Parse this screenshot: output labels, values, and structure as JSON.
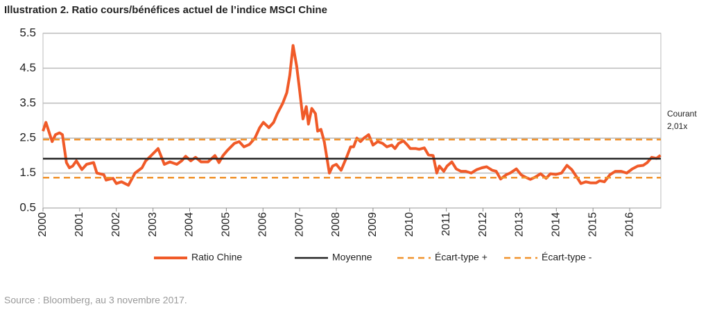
{
  "chart_data": {
    "type": "line",
    "title": "Illustration 2. Ratio cours/bénéfices actuel de l’indice MSCI Chine",
    "source": "Source : Bloomberg, au 3 novembre 2017.",
    "annotation": [
      "Courant",
      "2,01x"
    ],
    "xlim": [
      2000,
      2016.85
    ],
    "xticks": [
      2000,
      2001,
      2002,
      2003,
      2004,
      2005,
      2006,
      2007,
      2008,
      2009,
      2010,
      2011,
      2012,
      2013,
      2014,
      2015,
      2016
    ],
    "ylim": [
      0.5,
      5.5
    ],
    "yticks": [
      0.5,
      1.5,
      2.5,
      3.5,
      4.5,
      5.5
    ],
    "grid": true,
    "series": [
      {
        "name": "Ratio Chine",
        "color": "#f05a28",
        "width": 4,
        "dashed": false,
        "x": [
          2000.0,
          2000.08,
          2000.25,
          2000.34,
          2000.45,
          2000.53,
          2000.64,
          2000.72,
          2000.81,
          2000.91,
          2001.06,
          2001.19,
          2001.38,
          2001.47,
          2001.66,
          2001.72,
          2001.91,
          2002.0,
          2002.14,
          2002.33,
          2002.51,
          2002.7,
          2002.8,
          2002.95,
          2003.14,
          2003.31,
          2003.46,
          2003.65,
          2003.78,
          2003.89,
          2004.03,
          2004.16,
          2004.31,
          2004.5,
          2004.69,
          2004.8,
          2004.91,
          2005.03,
          2005.22,
          2005.35,
          2005.48,
          2005.63,
          2005.78,
          2005.91,
          2006.01,
          2006.16,
          2006.29,
          2006.39,
          2006.54,
          2006.65,
          2006.73,
          2006.82,
          2006.92,
          2006.99,
          2007.09,
          2007.18,
          2007.24,
          2007.33,
          2007.43,
          2007.49,
          2007.58,
          2007.67,
          2007.81,
          2007.9,
          2008.0,
          2008.13,
          2008.28,
          2008.39,
          2008.47,
          2008.56,
          2008.66,
          2008.75,
          2008.88,
          2009.0,
          2009.13,
          2009.26,
          2009.38,
          2009.51,
          2009.6,
          2009.7,
          2009.83,
          2009.94,
          2010.02,
          2010.17,
          2010.26,
          2010.4,
          2010.51,
          2010.64,
          2010.74,
          2010.81,
          2010.93,
          2011.02,
          2011.15,
          2011.27,
          2011.4,
          2011.53,
          2011.68,
          2011.83,
          2011.97,
          2012.1,
          2012.25,
          2012.36,
          2012.48,
          2012.63,
          2012.74,
          2012.91,
          2013.04,
          2013.16,
          2013.29,
          2013.42,
          2013.57,
          2013.72,
          2013.84,
          2013.99,
          2014.14,
          2014.29,
          2014.42,
          2014.56,
          2014.67,
          2014.8,
          2014.93,
          2015.09,
          2015.18,
          2015.31,
          2015.46,
          2015.61,
          2015.77,
          2015.92,
          2016.07,
          2016.22,
          2016.37,
          2016.48,
          2016.6,
          2016.73,
          2016.84
        ],
        "values": [
          2.7,
          2.95,
          2.4,
          2.6,
          2.65,
          2.6,
          1.8,
          1.65,
          1.7,
          1.85,
          1.6,
          1.75,
          1.8,
          1.5,
          1.45,
          1.3,
          1.35,
          1.2,
          1.25,
          1.15,
          1.5,
          1.65,
          1.85,
          2.0,
          2.2,
          1.75,
          1.82,
          1.75,
          1.85,
          1.98,
          1.85,
          1.95,
          1.82,
          1.82,
          2.0,
          1.8,
          2.0,
          2.15,
          2.35,
          2.4,
          2.25,
          2.32,
          2.5,
          2.8,
          2.95,
          2.8,
          2.95,
          3.2,
          3.5,
          3.8,
          4.3,
          5.15,
          4.55,
          3.95,
          3.05,
          3.4,
          2.9,
          3.35,
          3.2,
          2.7,
          2.75,
          2.4,
          1.5,
          1.7,
          1.75,
          1.58,
          1.95,
          2.25,
          2.25,
          2.5,
          2.4,
          2.5,
          2.6,
          2.3,
          2.4,
          2.35,
          2.25,
          2.3,
          2.2,
          2.35,
          2.42,
          2.3,
          2.2,
          2.2,
          2.18,
          2.22,
          2.02,
          2.0,
          1.5,
          1.7,
          1.55,
          1.7,
          1.82,
          1.62,
          1.55,
          1.55,
          1.5,
          1.6,
          1.65,
          1.68,
          1.58,
          1.55,
          1.33,
          1.45,
          1.5,
          1.62,
          1.45,
          1.38,
          1.32,
          1.38,
          1.48,
          1.35,
          1.48,
          1.46,
          1.5,
          1.72,
          1.6,
          1.38,
          1.2,
          1.25,
          1.22,
          1.22,
          1.28,
          1.25,
          1.45,
          1.55,
          1.55,
          1.5,
          1.62,
          1.7,
          1.72,
          1.8,
          1.95,
          1.92,
          2.01
        ]
      },
      {
        "name": "Moyenne",
        "color": "#222222",
        "width": 2.5,
        "dashed": false,
        "x": [
          2000,
          2016.85
        ],
        "values": [
          1.91,
          1.91
        ]
      },
      {
        "name": "Écart-type +",
        "color": "#f0922b",
        "width": 2.5,
        "dashed": true,
        "x": [
          2000,
          2016.85
        ],
        "values": [
          2.46,
          2.46
        ]
      },
      {
        "name": "Écart-type -",
        "color": "#f0922b",
        "width": 2.5,
        "dashed": true,
        "x": [
          2000,
          2016.85
        ],
        "values": [
          1.37,
          1.37
        ]
      }
    ]
  }
}
